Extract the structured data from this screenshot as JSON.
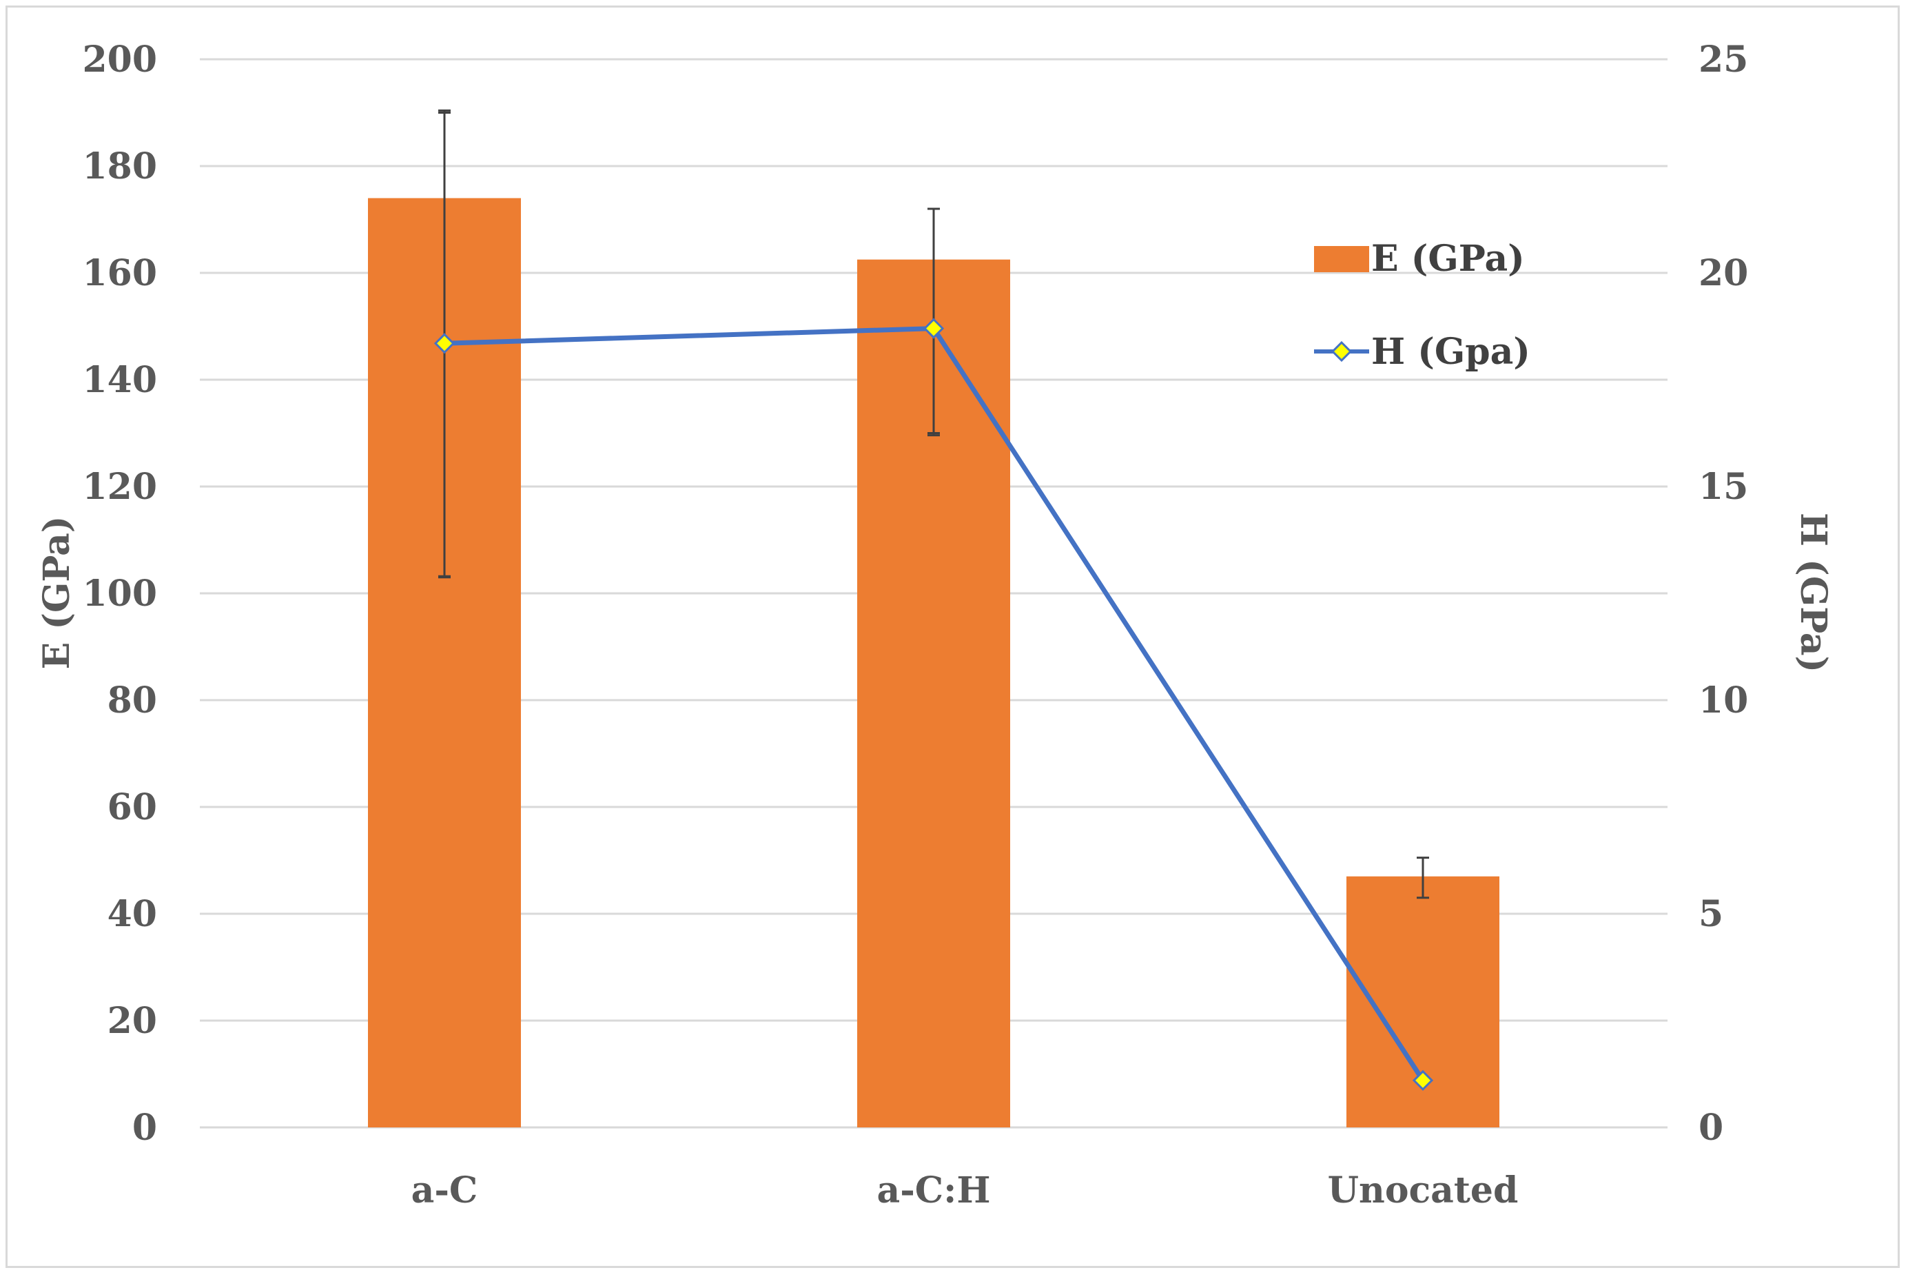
{
  "chart_data": {
    "type": "bar",
    "categories": [
      "a-C",
      "a-C:H",
      "Unocated"
    ],
    "series": [
      {
        "name": "E (GPa)",
        "type": "bar",
        "axis": "left",
        "color": "#ED7D31",
        "values": [
          174,
          162.5,
          47
        ],
        "error_low": [
          103,
          130,
          43
        ],
        "error_high": [
          190,
          172,
          50.5
        ]
      },
      {
        "name": "H (Gpa)",
        "type": "line",
        "axis": "right",
        "color": "#4472C4",
        "marker_color": "#FFFF00",
        "values": [
          18.35,
          18.7,
          1.1
        ],
        "error_low": [
          12.9,
          16.2,
          1.1
        ],
        "error_high": [
          23.8,
          21.5,
          1.1
        ]
      }
    ],
    "ylabel": "E (GPa)",
    "y2label": "H (GPa)",
    "ylim": [
      0,
      200
    ],
    "y2lim": [
      0,
      25
    ],
    "yticks": [
      "0",
      "20",
      "40",
      "60",
      "80",
      "100",
      "120",
      "140",
      "160",
      "180",
      "200"
    ],
    "y2ticks": [
      "0",
      "5",
      "10",
      "15",
      "20",
      "25"
    ],
    "grid": true,
    "legend_position": "right"
  },
  "colors": {
    "bar": "#ED7D31",
    "line": "#4472C4",
    "marker": "#FFFF00",
    "grid": "#d9d9d9",
    "error_bar": "#404040",
    "text": "#595959"
  }
}
